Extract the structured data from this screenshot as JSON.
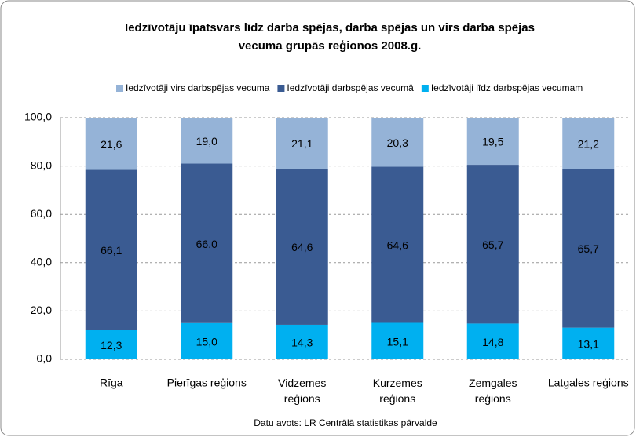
{
  "chart_data": {
    "type": "stacked_bar",
    "title": [
      "Iedzīvotāju īpatsvars līdz darba spējas, darba spējas un virs darba spējas",
      "vecuma grupās reģionos 2008.g."
    ],
    "categories": [
      "Rīga",
      "Pierīgas reģions",
      "Vidzemes\nreģions",
      "Kurzemes\nreģions",
      "Zemgales\nreģions",
      "Latgales reģions"
    ],
    "series": [
      {
        "name": "Iedzīvotāji līdz darbspējas vecumam",
        "color": "#00b0f0",
        "values": [
          12.3,
          15.0,
          14.3,
          15.1,
          14.8,
          13.1
        ],
        "value_labels": [
          "12,3",
          "15,0",
          "14,3",
          "15,1",
          "14,8",
          "13,1"
        ]
      },
      {
        "name": "Iedzīvotāji darbspējas vecumā",
        "color": "#3a5b92",
        "values": [
          66.1,
          66.0,
          64.6,
          64.6,
          65.7,
          65.7
        ],
        "value_labels": [
          "66,1",
          "66,0",
          "64,6",
          "64,6",
          "65,7",
          "65,7"
        ]
      },
      {
        "name": "Iedzīvotāji virs darbspējas vecuma",
        "color": "#95b3d7",
        "values": [
          21.6,
          19.0,
          21.1,
          20.3,
          19.5,
          21.2
        ],
        "value_labels": [
          "21,6",
          "19,0",
          "21,1",
          "20,3",
          "19,5",
          "21,2"
        ]
      }
    ],
    "legend_order": [
      2,
      1,
      0
    ],
    "ylim": [
      0,
      100
    ],
    "yticks": [
      {
        "value": 0,
        "label": "0,0"
      },
      {
        "value": 20,
        "label": "20,0"
      },
      {
        "value": 40,
        "label": "40,0"
      },
      {
        "value": 60,
        "label": "60,0"
      },
      {
        "value": 80,
        "label": "80,0"
      },
      {
        "value": 100,
        "label": "100,0"
      }
    ],
    "grid": true,
    "source": "Datu avots: LR Centrālā statistikas pārvalde"
  }
}
